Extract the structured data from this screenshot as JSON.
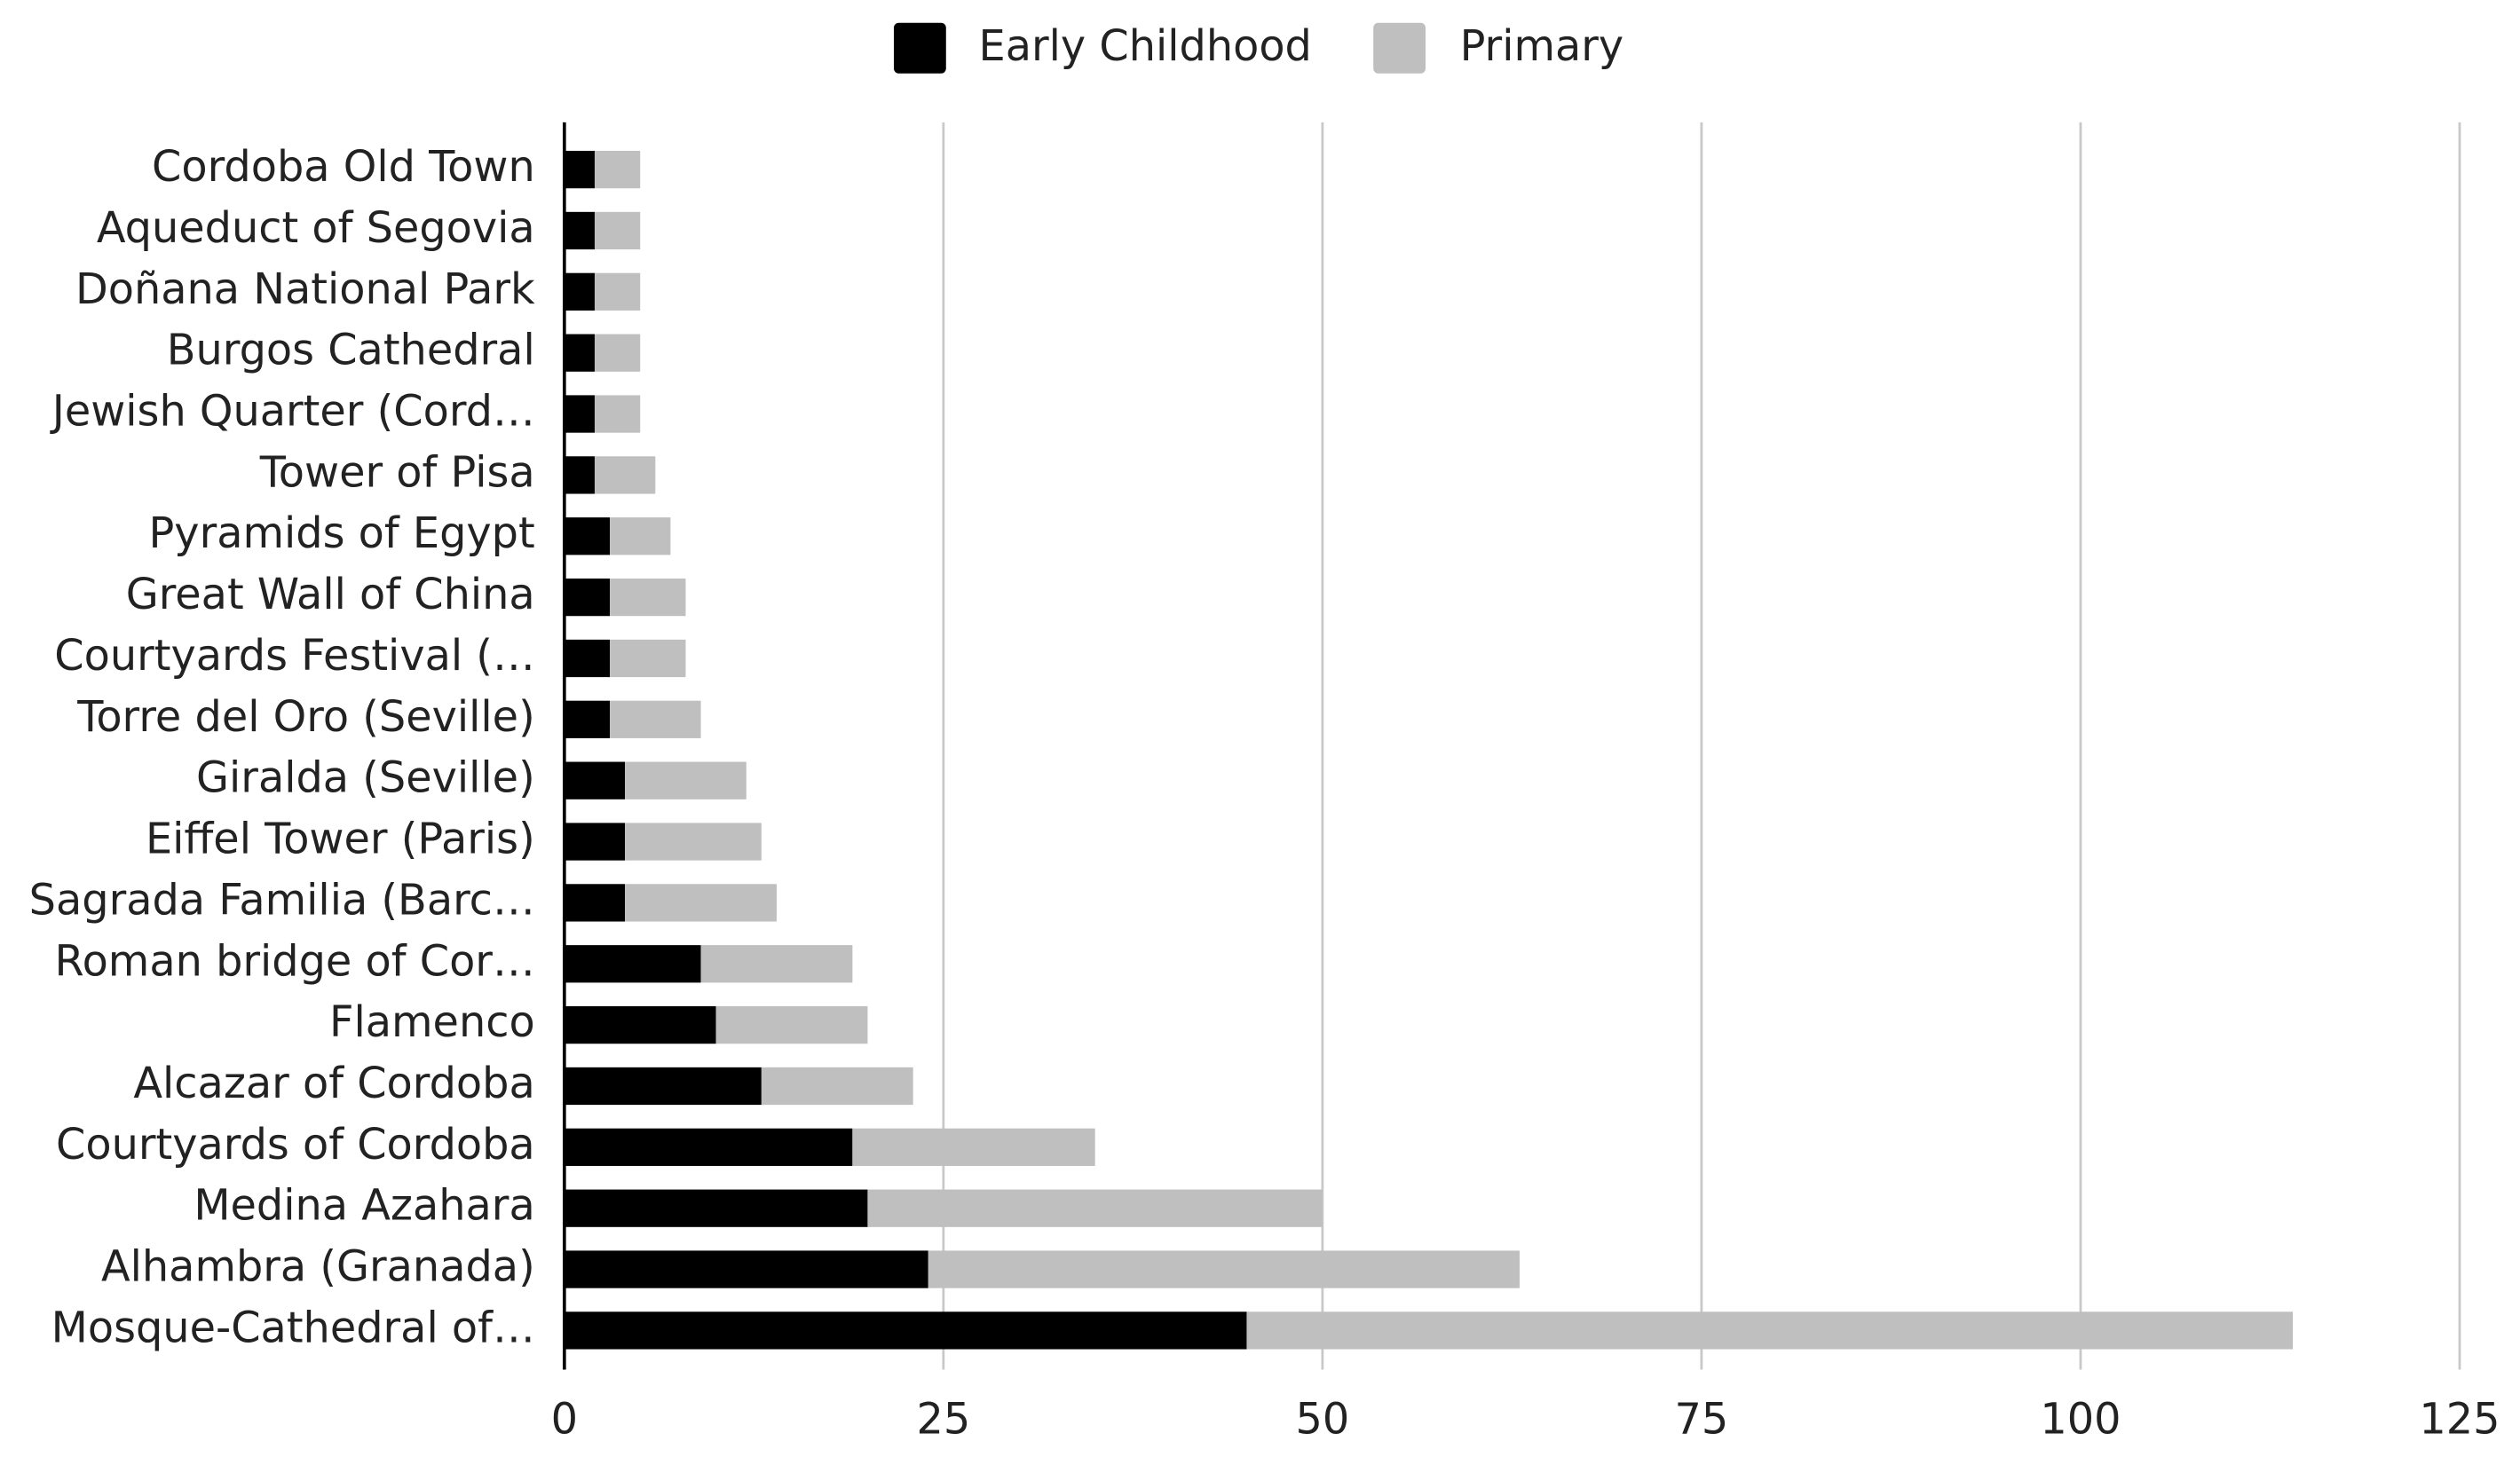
{
  "chart_data": {
    "type": "stacked-barh",
    "categories": [
      "Cordoba Old Town",
      "Aqueduct of Segovia",
      "Doñana National Park",
      "Burgos Cathedral",
      "Jewish Quarter (Cord…",
      "Tower of Pisa",
      "Pyramids of Egypt",
      "Great Wall of China",
      "Courtyards Festival (…",
      "Torre del Oro (Seville)",
      "Giralda (Seville)",
      "Eiffel Tower (Paris)",
      "Sagrada Familia (Barc…",
      "Roman bridge of Cor…",
      "Flamenco",
      "Alcazar of Cordoba",
      "Courtyards of Cordoba",
      "Medina Azahara",
      "Alhambra (Granada)",
      "Mosque-Cathedral of…"
    ],
    "series": [
      {
        "name": "Early Childhood",
        "color": "#000000",
        "values": [
          2,
          2,
          2,
          2,
          2,
          2,
          3,
          3,
          3,
          3,
          4,
          4,
          4,
          9,
          10,
          13,
          19,
          20,
          24,
          45
        ]
      },
      {
        "name": "Primary",
        "color": "#bfbfbf",
        "values": [
          3,
          3,
          3,
          3,
          3,
          4,
          4,
          5,
          5,
          6,
          8,
          9,
          10,
          10,
          10,
          10,
          16,
          30,
          39,
          69
        ]
      }
    ],
    "xlim": [
      0,
      125
    ],
    "xticks": [
      0,
      25,
      50,
      75,
      100,
      125
    ],
    "grid": true,
    "legend": "top"
  }
}
